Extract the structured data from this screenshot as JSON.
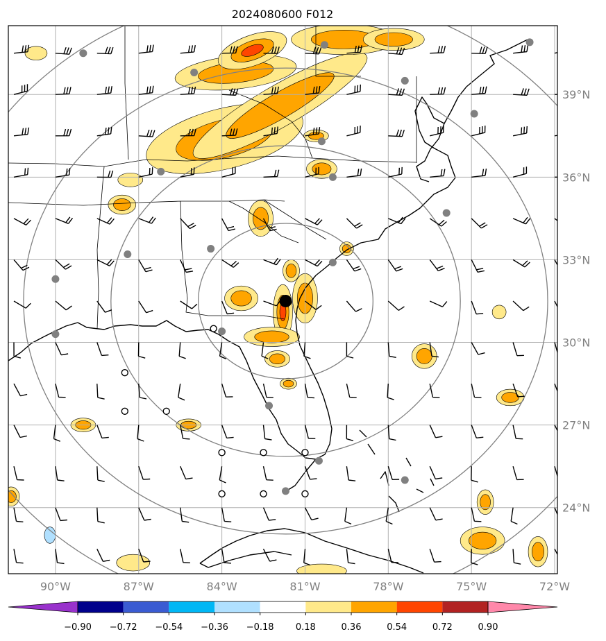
{
  "title": "2024080600 F012",
  "map": {
    "lon_range": [
      -91.7,
      -71.9
    ],
    "lat_range": [
      21.6,
      41.5
    ],
    "lon_ticks": [
      "90°W",
      "87°W",
      "84°W",
      "81°W",
      "78°W",
      "75°W",
      "72°W"
    ],
    "lon_tick_values": [
      -90,
      -87,
      -84,
      -81,
      -78,
      -75,
      -72
    ],
    "lat_ticks": [
      "39°N",
      "36°N",
      "33°N",
      "30°N",
      "27°N",
      "24°N"
    ],
    "lat_tick_values": [
      39,
      36,
      33,
      30,
      27,
      24
    ],
    "center": {
      "lon": -81.7,
      "lat": 31.5
    },
    "range_ring_radii_deg": [
      3,
      6,
      9,
      12
    ],
    "grid": true
  },
  "stations": [
    {
      "lon": -89.0,
      "lat": 40.5,
      "type": "filled"
    },
    {
      "lon": -85.0,
      "lat": 39.8,
      "type": "filled"
    },
    {
      "lon": -80.3,
      "lat": 40.8,
      "type": "filled"
    },
    {
      "lon": -77.4,
      "lat": 39.5,
      "type": "filled"
    },
    {
      "lon": -74.9,
      "lat": 38.3,
      "type": "filled"
    },
    {
      "lon": -72.9,
      "lat": 40.9,
      "type": "filled"
    },
    {
      "lon": -86.2,
      "lat": 36.2,
      "type": "filled"
    },
    {
      "lon": -80.4,
      "lat": 37.3,
      "type": "filled"
    },
    {
      "lon": -80.0,
      "lat": 36.0,
      "type": "filled"
    },
    {
      "lon": -75.9,
      "lat": 34.7,
      "type": "filled"
    },
    {
      "lon": -87.4,
      "lat": 33.2,
      "type": "filled"
    },
    {
      "lon": -84.4,
      "lat": 33.4,
      "type": "filled"
    },
    {
      "lon": -90.0,
      "lat": 32.3,
      "type": "filled"
    },
    {
      "lon": -80.0,
      "lat": 32.9,
      "type": "filled"
    },
    {
      "lon": -90.0,
      "lat": 30.3,
      "type": "filled"
    },
    {
      "lon": -84.0,
      "lat": 30.4,
      "type": "filled"
    },
    {
      "lon": -82.3,
      "lat": 27.7,
      "type": "filled"
    },
    {
      "lon": -80.5,
      "lat": 25.7,
      "type": "filled"
    },
    {
      "lon": -81.7,
      "lat": 24.6,
      "type": "filled"
    },
    {
      "lon": -77.4,
      "lat": 25.0,
      "type": "filled"
    },
    {
      "lon": -84.3,
      "lat": 30.5,
      "type": "open"
    },
    {
      "lon": -87.5,
      "lat": 28.9,
      "type": "open"
    },
    {
      "lon": -87.5,
      "lat": 27.5,
      "type": "open"
    },
    {
      "lon": -86.0,
      "lat": 27.5,
      "type": "open"
    },
    {
      "lon": -84.0,
      "lat": 26.0,
      "type": "open"
    },
    {
      "lon": -82.5,
      "lat": 26.0,
      "type": "open"
    },
    {
      "lon": -81.0,
      "lat": 26.0,
      "type": "open"
    },
    {
      "lon": -84.0,
      "lat": 24.5,
      "type": "open"
    },
    {
      "lon": -82.5,
      "lat": 24.5,
      "type": "open"
    },
    {
      "lon": -81.0,
      "lat": 24.5,
      "type": "open"
    }
  ],
  "center_marker": {
    "lon": -81.7,
    "lat": 31.5
  },
  "contours": {
    "levels": [
      0.18,
      0.36,
      0.54
    ],
    "colors": [
      "#ffe98a",
      "#ffa500",
      "#ff4500"
    ],
    "regions": [
      {
        "cx": -83.9,
        "cy": 37.4,
        "rx": 2.9,
        "ry": 1.1,
        "rot": -14,
        "levels": [
          0.18,
          0.36,
          0.54
        ]
      },
      {
        "cx": -81.9,
        "cy": 38.6,
        "rx": 3.6,
        "ry": 0.75,
        "rot": -30,
        "levels": [
          0.18,
          0.36
        ]
      },
      {
        "cx": -83.5,
        "cy": 39.8,
        "rx": 2.2,
        "ry": 0.6,
        "rot": -6,
        "levels": [
          0.18,
          0.36
        ]
      },
      {
        "cx": -82.9,
        "cy": 40.6,
        "rx": 1.3,
        "ry": 0.55,
        "rot": -20,
        "levels": [
          0.18,
          0.36,
          0.54
        ]
      },
      {
        "cx": -79.6,
        "cy": 41.0,
        "rx": 1.9,
        "ry": 0.55,
        "rot": 0,
        "levels": [
          0.18,
          0.36
        ]
      },
      {
        "cx": -77.8,
        "cy": 41.0,
        "rx": 1.1,
        "ry": 0.4,
        "rot": 0,
        "levels": [
          0.18,
          0.36
        ]
      },
      {
        "cx": -80.4,
        "cy": 36.3,
        "rx": 0.55,
        "ry": 0.35,
        "rot": 0,
        "levels": [
          0.18,
          0.36
        ]
      },
      {
        "cx": -80.6,
        "cy": 37.5,
        "rx": 0.45,
        "ry": 0.22,
        "rot": 0,
        "levels": [
          0.18,
          0.36
        ]
      },
      {
        "cx": -82.6,
        "cy": 34.5,
        "rx": 0.45,
        "ry": 0.65,
        "rot": 0,
        "levels": [
          0.18,
          0.36
        ]
      },
      {
        "cx": -81.8,
        "cy": 31.1,
        "rx": 0.35,
        "ry": 1.0,
        "rot": 0,
        "levels": [
          0.18,
          0.36,
          0.54
        ]
      },
      {
        "cx": -81.0,
        "cy": 31.6,
        "rx": 0.45,
        "ry": 0.9,
        "rot": 0,
        "levels": [
          0.18,
          0.36
        ]
      },
      {
        "cx": -83.3,
        "cy": 31.6,
        "rx": 0.6,
        "ry": 0.45,
        "rot": 0,
        "levels": [
          0.18,
          0.36
        ]
      },
      {
        "cx": -82.2,
        "cy": 30.2,
        "rx": 1.0,
        "ry": 0.35,
        "rot": 0,
        "levels": [
          0.18,
          0.36
        ]
      },
      {
        "cx": -82.0,
        "cy": 29.4,
        "rx": 0.45,
        "ry": 0.3,
        "rot": 0,
        "levels": [
          0.18,
          0.36
        ]
      },
      {
        "cx": -81.6,
        "cy": 28.5,
        "rx": 0.3,
        "ry": 0.2,
        "rot": 0,
        "levels": [
          0.18,
          0.36
        ]
      },
      {
        "cx": -81.5,
        "cy": 32.6,
        "rx": 0.3,
        "ry": 0.4,
        "rot": 0,
        "levels": [
          0.18,
          0.36
        ]
      },
      {
        "cx": -79.5,
        "cy": 33.4,
        "rx": 0.25,
        "ry": 0.25,
        "rot": 0,
        "levels": [
          0.18,
          0.36
        ]
      },
      {
        "cx": -87.6,
        "cy": 35.0,
        "rx": 0.5,
        "ry": 0.35,
        "rot": 0,
        "levels": [
          0.18,
          0.36
        ]
      },
      {
        "cx": -87.3,
        "cy": 35.9,
        "rx": 0.45,
        "ry": 0.25,
        "rot": 0,
        "levels": [
          0.18
        ]
      },
      {
        "cx": -90.7,
        "cy": 40.5,
        "rx": 0.4,
        "ry": 0.25,
        "rot": 0,
        "levels": [
          0.18
        ]
      },
      {
        "cx": -89.0,
        "cy": 27.0,
        "rx": 0.45,
        "ry": 0.25,
        "rot": 0,
        "levels": [
          0.18,
          0.36
        ]
      },
      {
        "cx": -85.2,
        "cy": 27.0,
        "rx": 0.45,
        "ry": 0.22,
        "rot": 0,
        "levels": [
          0.18,
          0.36
        ]
      },
      {
        "cx": -76.7,
        "cy": 29.5,
        "rx": 0.45,
        "ry": 0.45,
        "rot": 0,
        "levels": [
          0.18,
          0.36
        ]
      },
      {
        "cx": -74.0,
        "cy": 31.1,
        "rx": 0.25,
        "ry": 0.25,
        "rot": 0,
        "levels": [
          0.18
        ]
      },
      {
        "cx": -73.6,
        "cy": 28.0,
        "rx": 0.5,
        "ry": 0.3,
        "rot": 0,
        "levels": [
          0.18,
          0.36
        ]
      },
      {
        "cx": -74.6,
        "cy": 22.8,
        "rx": 0.8,
        "ry": 0.5,
        "rot": 0,
        "levels": [
          0.18,
          0.36
        ]
      },
      {
        "cx": -72.6,
        "cy": 22.4,
        "rx": 0.35,
        "ry": 0.55,
        "rot": 0,
        "levels": [
          0.18,
          0.36
        ]
      },
      {
        "cx": -74.5,
        "cy": 24.2,
        "rx": 0.3,
        "ry": 0.45,
        "rot": 0,
        "levels": [
          0.18,
          0.36
        ]
      },
      {
        "cx": -91.6,
        "cy": 24.4,
        "rx": 0.3,
        "ry": 0.35,
        "rot": 0,
        "levels": [
          0.18,
          0.36
        ]
      },
      {
        "cx": -87.2,
        "cy": 22.0,
        "rx": 0.6,
        "ry": 0.3,
        "rot": 0,
        "levels": [
          0.18
        ]
      },
      {
        "cx": -80.4,
        "cy": 21.7,
        "rx": 0.9,
        "ry": 0.25,
        "rot": 0,
        "levels": [
          0.18
        ]
      }
    ],
    "negative_regions": [
      {
        "cx": -90.2,
        "cy": 23.0,
        "rx": 0.2,
        "ry": 0.3,
        "level": -0.18,
        "color": "#b0e0ff"
      }
    ]
  },
  "colorbar": {
    "ticks": [
      "−0.90",
      "−0.72",
      "−0.54",
      "−0.36",
      "−0.18",
      "0.18",
      "0.36",
      "0.54",
      "0.72",
      "0.90"
    ],
    "tick_values": [
      -0.9,
      -0.72,
      -0.54,
      -0.36,
      -0.18,
      0.18,
      0.36,
      0.54,
      0.72,
      0.9
    ],
    "under_color": "#9932cc",
    "over_color": "#ff88aa",
    "colors": [
      "#00008b",
      "#3a5bd2",
      "#00b7f5",
      "#b0e0ff",
      "#ffffff",
      "#ffe98a",
      "#ffa500",
      "#ff4500",
      "#b22222"
    ]
  },
  "wind_barb_grid": {
    "lon_start": -91.5,
    "lon_step": 1.5,
    "lat_start": 22.5,
    "lat_step": 1.5,
    "color": "#000000"
  }
}
